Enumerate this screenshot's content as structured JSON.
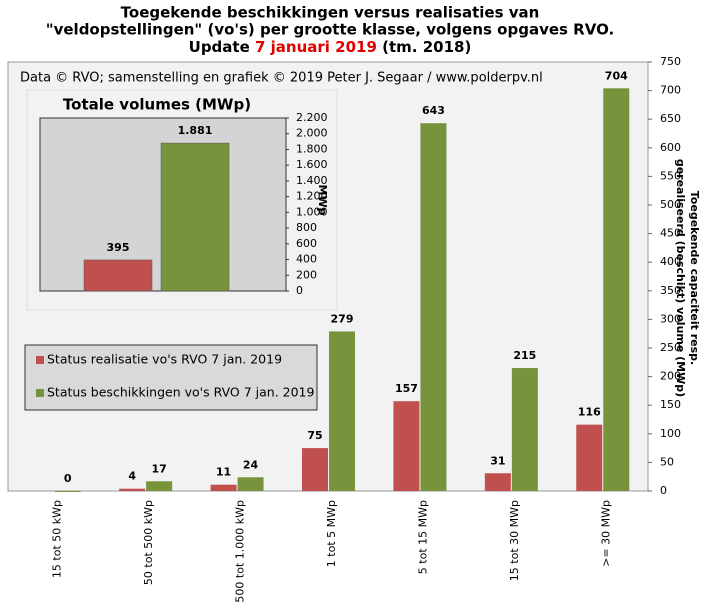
{
  "chart_data": [
    {
      "type": "bar",
      "title": {
        "line1": "Toegekende beschikkingen versus realisaties van",
        "line2": "\"veldopstellingen\" (vo's) per grootte klasse, volgens opgaves RVO.",
        "line3_start": "Update",
        "line3_date": "7 januari 2019",
        "line3_end": "(tm. 2018)"
      },
      "annotation": "Data © RVO; samenstelling en grafiek © 2019 Peter J. Segaar / www.polderpv.nl",
      "ylabel": [
        "Toegekende capaciteit resp.",
        "gerealiseerd (beschikt) volume (MWp)"
      ],
      "categories": [
        "15 tot 50 kWp",
        "50 tot 500 kWp",
        "500 tot 1.000 kWp",
        "1 tot 5 MWp",
        "5 tot  15 MWp",
        "15 tot 30 MWp",
        ">= 30 MWp"
      ],
      "series": [
        {
          "name": "Status realisatie vo's RVO 7 jan. 2019",
          "color": "#c0504d",
          "values": [
            null,
            4,
            11,
            75,
            157,
            31,
            116
          ]
        },
        {
          "name": "Status beschikkingen vo's RVO 7 jan. 2019",
          "color": "#77933c",
          "values": [
            0,
            17,
            24,
            279,
            643,
            215,
            704
          ]
        }
      ],
      "ylim": [
        0,
        750
      ],
      "yticks": [
        0,
        50,
        100,
        150,
        200,
        250,
        300,
        350,
        400,
        450,
        500,
        550,
        600,
        650,
        700,
        750
      ]
    },
    {
      "type": "bar",
      "title": "Totale volumes (MWp)",
      "ylabel": "MWp",
      "values": [
        395,
        1881
      ],
      "value_labels": [
        "395",
        "1.881"
      ],
      "colors": [
        "#c0504d",
        "#77933c"
      ],
      "ylim": [
        0,
        2200
      ],
      "yticks": [
        0,
        {
          "value": 200,
          "label": "200"
        },
        {
          "value": 400,
          "label": "400"
        },
        {
          "value": 600,
          "label": "600"
        },
        {
          "value": 800,
          "label": "800"
        },
        {
          "value": 1000,
          "label": "1.000"
        },
        {
          "value": 1200,
          "label": "1.200"
        },
        {
          "value": 1400,
          "label": "1.400"
        },
        {
          "value": 1600,
          "label": "1.600"
        },
        {
          "value": 1800,
          "label": "1.800"
        },
        {
          "value": 2000,
          "label": "2.000"
        },
        {
          "value": 2200,
          "label": "2.200"
        }
      ]
    }
  ]
}
